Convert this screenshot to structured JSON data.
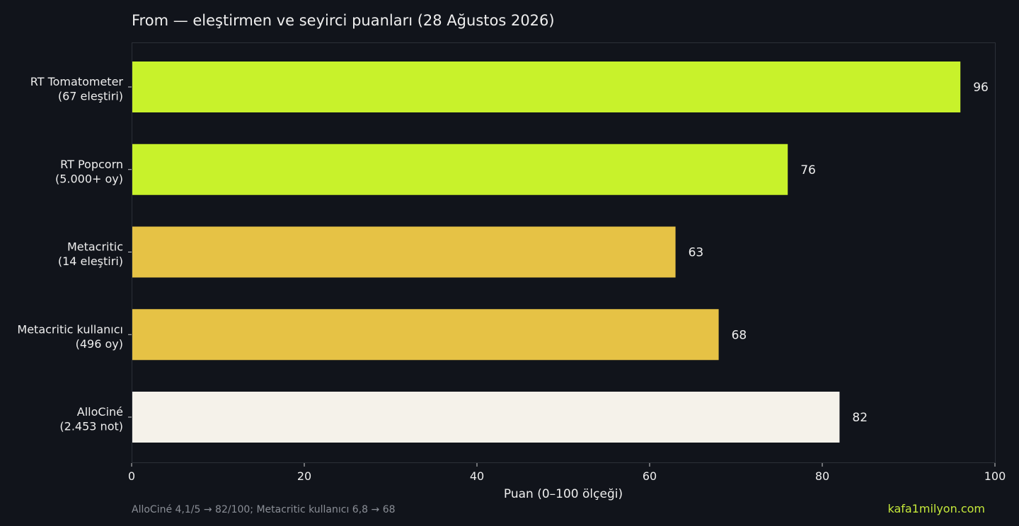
{
  "chart_data": {
    "type": "bar",
    "orientation": "horizontal",
    "title": "From — eleştirmen ve seyirci puanları (28 Ağustos 2026)",
    "xlabel": "Puan (0–100 ölçeği)",
    "ylabel": "",
    "xlim": [
      0,
      100
    ],
    "xticks": [
      "0",
      "20",
      "40",
      "60",
      "80",
      "100"
    ],
    "grid": false,
    "categories": [
      [
        "RT Tomatometer",
        "(67 eleştiri)"
      ],
      [
        "RT Popcorn",
        "(5.000+ oy)"
      ],
      [
        "Metacritic",
        "(14 eleştiri)"
      ],
      [
        "Metacritic kullanıcı",
        "(496 oy)"
      ],
      [
        "AlloCiné",
        "(2.453 not)"
      ]
    ],
    "values": [
      96,
      76,
      63,
      68,
      82
    ],
    "value_labels": [
      "96",
      "76",
      "63",
      "68",
      "82"
    ],
    "bar_colors": [
      "#c8f22b",
      "#c8f22b",
      "#e6c245",
      "#e6c245",
      "#f5f2ea"
    ]
  },
  "footnote": "AlloCiné 4,1/5 → 82/100; Metacritic kullanıcı 6,8 → 68",
  "brand": "kafa1milyon.com",
  "colors": {
    "background": "#11141b",
    "frame": "#2c3038",
    "text": "#eeeeee"
  }
}
